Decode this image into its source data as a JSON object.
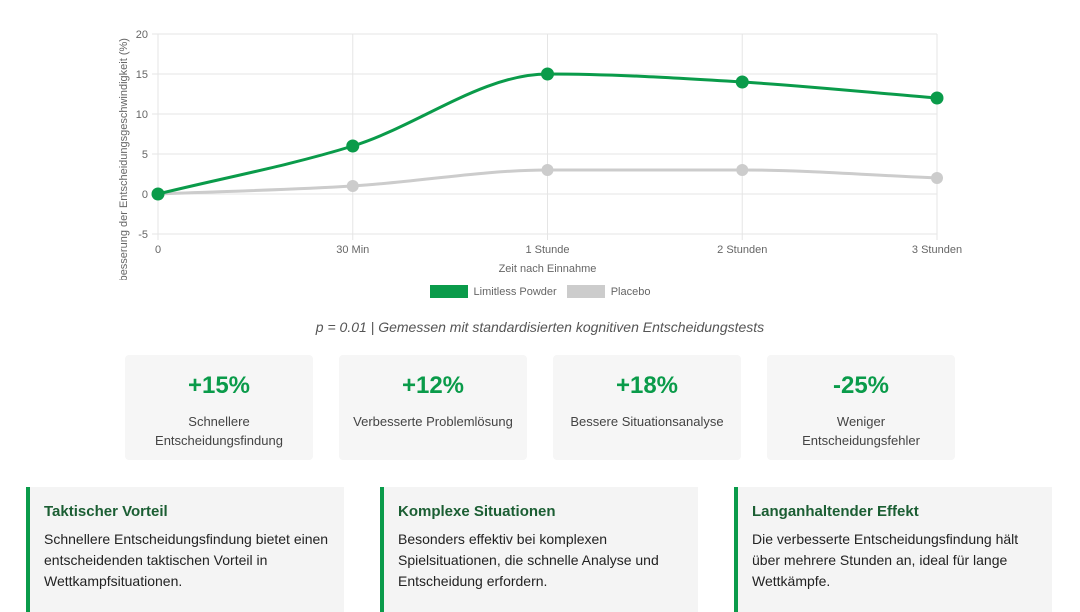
{
  "chart_data": {
    "type": "line",
    "categories": [
      "0",
      "30 Min",
      "1 Stunde",
      "2 Stunden",
      "3 Stunden"
    ],
    "series": [
      {
        "name": "Limitless Powder",
        "values": [
          0,
          6,
          15,
          14,
          12
        ],
        "color": "#0a9b4a"
      },
      {
        "name": "Placebo",
        "values": [
          0,
          1,
          3,
          3,
          2
        ],
        "color": "#cccccc"
      }
    ],
    "xlabel": "Zeit nach Einnahme",
    "ylabel": "Verbesserung der Entscheidungsgeschwindigkeit (%)",
    "ylim": [
      -5,
      20
    ],
    "yticks": [
      "-5",
      "0",
      "5",
      "10",
      "15",
      "20"
    ],
    "grid": true,
    "legend": "bottom"
  },
  "caption": "p = 0.01 | Gemessen mit standardisierten kognitiven Entscheidungstests",
  "stats": [
    {
      "value": "+15%",
      "label": "Schnellere Entscheidungsfindung"
    },
    {
      "value": "+12%",
      "label": "Verbesserte Problemlösung"
    },
    {
      "value": "+18%",
      "label": "Bessere Situationsanalyse"
    },
    {
      "value": "-25%",
      "label": "Weniger Entscheidungsfehler"
    }
  ],
  "cards": [
    {
      "title": "Taktischer Vorteil",
      "text": "Schnellere Entscheidungsfindung bietet einen entscheidenden taktischen Vorteil in Wettkampfsituationen."
    },
    {
      "title": "Komplexe Situationen",
      "text": "Besonders effektiv bei komplexen Spielsituationen, die schnelle Analyse und Entscheidung erfordern."
    },
    {
      "title": "Langanhaltender Effekt",
      "text": "Die verbesserte Entscheidungsfindung hält über mehrere Stunden an, ideal für lange Wettkämpfe."
    }
  ]
}
